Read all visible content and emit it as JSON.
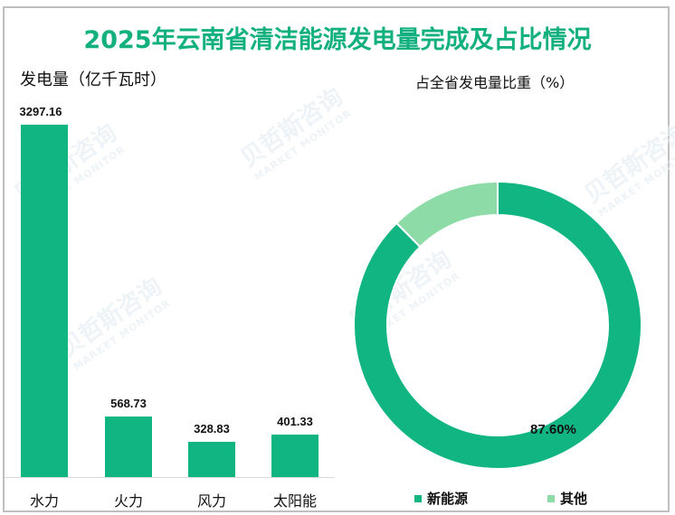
{
  "title": "2025年云南省清洁能源发电量完成及占比情况",
  "left_subtitle": "发电量（亿千瓦时）",
  "right_subtitle": "占全省发电量比重（%）",
  "watermark": {
    "cn": "贝哲斯咨询",
    "en": "MARKET MONITOR"
  },
  "colors": {
    "primary": "#10b582",
    "secondary": "#8ddca8",
    "title": "#12b07e"
  },
  "chart_data": [
    {
      "type": "bar",
      "title": "发电量（亿千瓦时）",
      "categories": [
        "水力",
        "火力",
        "风力",
        "太阳能"
      ],
      "values": [
        3297.16,
        568.73,
        328.83,
        401.33
      ],
      "value_labels": [
        "3297.16",
        "568.73",
        "328.83",
        "401.33"
      ],
      "xlabel": "",
      "ylabel": "发电量（亿千瓦时）",
      "grid": false,
      "color": "#10b582"
    },
    {
      "type": "pie",
      "subtype": "donut",
      "title": "占全省发电量比重（%）",
      "categories": [
        "新能源",
        "其他"
      ],
      "values": [
        87.6,
        12.4
      ],
      "data_labels": [
        "87.60%",
        ""
      ],
      "colors": [
        "#10b582",
        "#8ddca8"
      ],
      "legend_position": "bottom"
    }
  ],
  "legend": [
    {
      "label": "新能源",
      "color": "#10b582"
    },
    {
      "label": "其他",
      "color": "#8ddca8"
    }
  ],
  "donut_label": "87.60%"
}
